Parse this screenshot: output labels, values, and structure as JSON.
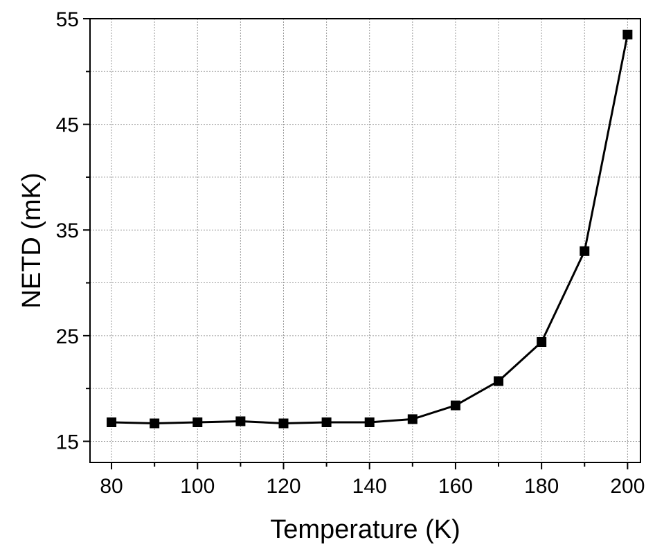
{
  "chart_data": {
    "type": "line",
    "title": "",
    "xlabel": "Temperature (K)",
    "ylabel": "NETD (mK)",
    "xlim": [
      75,
      203
    ],
    "ylim": [
      13,
      55
    ],
    "x_ticks": [
      80,
      100,
      120,
      140,
      160,
      180,
      200
    ],
    "x_minor_ticks": [
      90,
      110,
      130,
      150,
      170,
      190
    ],
    "y_ticks": [
      15,
      25,
      35,
      45,
      55
    ],
    "y_minor_ticks": [
      20,
      30,
      40,
      50
    ],
    "grid": true,
    "legend": "none",
    "series": [
      {
        "x": [
          80,
          90,
          100,
          110,
          120,
          130,
          140,
          150,
          160,
          170,
          180,
          190,
          200
        ],
        "y": [
          16.8,
          16.7,
          16.8,
          16.9,
          16.7,
          16.8,
          16.8,
          17.1,
          18.4,
          20.7,
          24.4,
          33.0,
          53.5
        ],
        "color": "#000000",
        "marker": "square"
      }
    ]
  }
}
